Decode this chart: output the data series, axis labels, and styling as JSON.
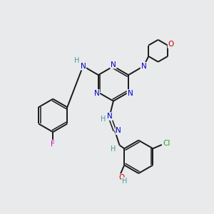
{
  "bg_color": "#e8eaec",
  "bond_color": "#1a1a1a",
  "N_color": "#0000cc",
  "O_color": "#cc0000",
  "F_color": "#cc00cc",
  "Cl_color": "#22aa22",
  "H_color": "#4a9a9a",
  "figsize": [
    3.0,
    3.0
  ],
  "dpi": 100,
  "xlim": [
    0,
    10
  ],
  "ylim": [
    0,
    10
  ]
}
